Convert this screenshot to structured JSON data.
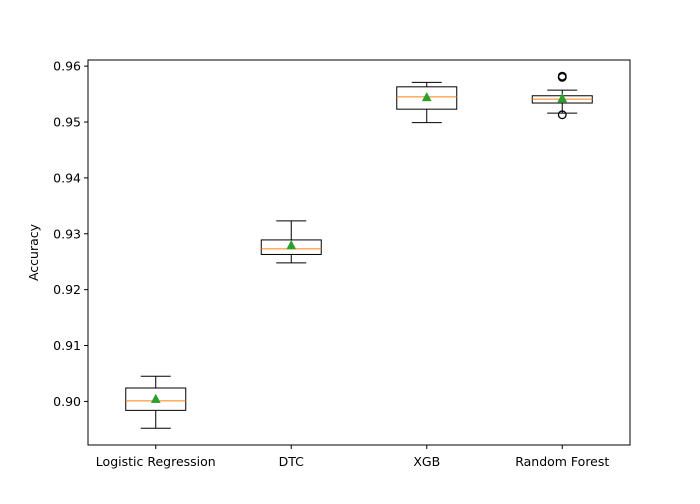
{
  "chart_data": {
    "type": "box",
    "title": "",
    "xlabel": "",
    "ylabel": "Accuracy",
    "ylim": [
      0.8922,
      0.9611
    ],
    "yticks": [
      0.9,
      0.91,
      0.92,
      0.93,
      0.94,
      0.95,
      0.96
    ],
    "ytick_labels": [
      "0.90",
      "0.91",
      "0.92",
      "0.93",
      "0.94",
      "0.95",
      "0.96"
    ],
    "grid": false,
    "categories": [
      "Logistic Regression",
      "DTC",
      "XGB",
      "Random Forest"
    ],
    "boxes": [
      {
        "category": "Logistic Regression",
        "whisker_low": 0.8952,
        "q1": 0.8984,
        "median": 0.9001,
        "q3": 0.9024,
        "whisker_high": 0.9045,
        "mean": 0.9004,
        "outliers": []
      },
      {
        "category": "DTC",
        "whisker_low": 0.9248,
        "q1": 0.9263,
        "median": 0.9273,
        "q3": 0.9289,
        "whisker_high": 0.9323,
        "mean": 0.9279,
        "outliers": []
      },
      {
        "category": "XGB",
        "whisker_low": 0.9499,
        "q1": 0.9523,
        "median": 0.9545,
        "q3": 0.9563,
        "whisker_high": 0.9571,
        "mean": 0.9544,
        "outliers": []
      },
      {
        "category": "Random Forest",
        "whisker_low": 0.9516,
        "q1": 0.9534,
        "median": 0.9541,
        "q3": 0.9547,
        "whisker_high": 0.9557,
        "mean": 0.9542,
        "outliers": [
          0.9513,
          0.958,
          0.9582
        ]
      }
    ],
    "colors": {
      "box": "#000000",
      "median": "#ff7f0e",
      "mean": "#2ca02c",
      "whisker": "#000000",
      "outlier": "#000000"
    }
  }
}
